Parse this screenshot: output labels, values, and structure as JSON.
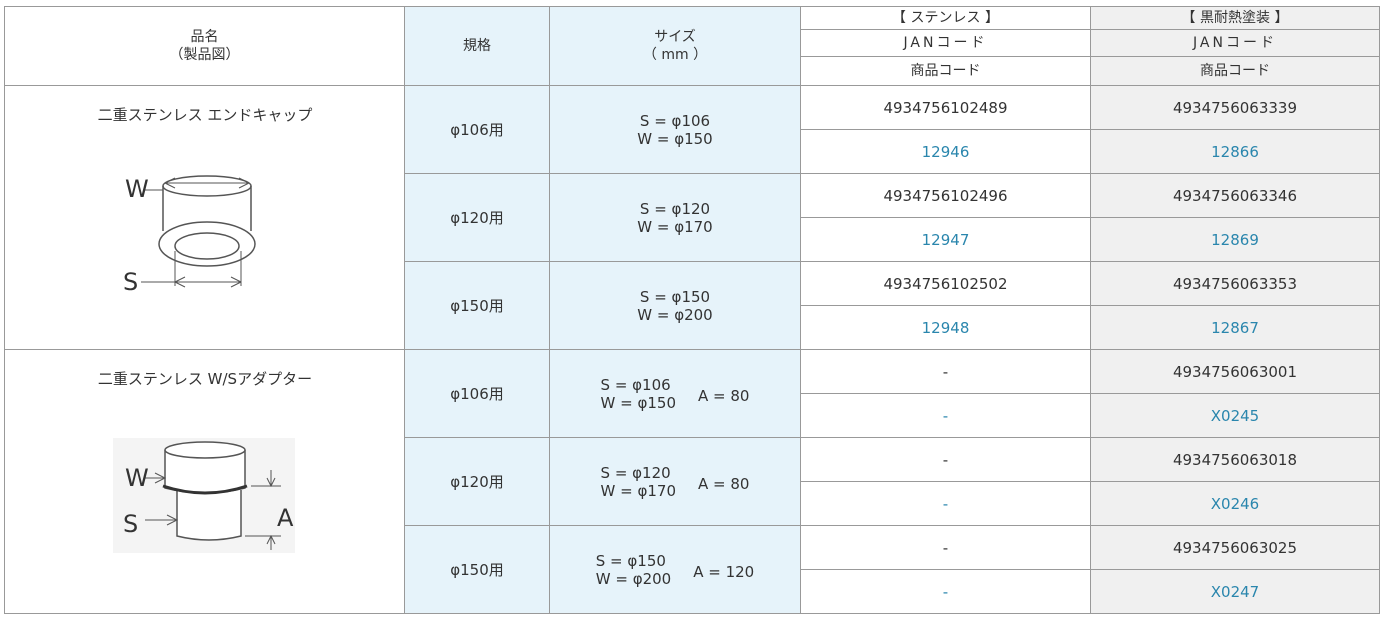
{
  "header": {
    "name": "品名",
    "name_sub": "（製品図）",
    "spec": "規格",
    "size": "サイズ",
    "size_sub": "（ mm ）",
    "columns": [
      {
        "title": "【 ステンレス 】",
        "jan": "JANコード",
        "code": "商品コード"
      },
      {
        "title": "【 黒耐熱塗装 】",
        "jan": "JANコード",
        "code": "商品コード"
      }
    ]
  },
  "products": [
    {
      "name": "二重ステンレス エンドキャップ",
      "diagram": {
        "w": "W",
        "s": "S"
      },
      "rows": [
        {
          "spec": "φ106用",
          "size_s": "S = φ106",
          "size_w": "W = φ150",
          "stainless": {
            "jan": "4934756102489",
            "code": "12946"
          },
          "black": {
            "jan": "4934756063339",
            "code": "12866"
          }
        },
        {
          "spec": "φ120用",
          "size_s": "S = φ120",
          "size_w": "W = φ170",
          "stainless": {
            "jan": "4934756102496",
            "code": "12947"
          },
          "black": {
            "jan": "4934756063346",
            "code": "12869"
          }
        },
        {
          "spec": "φ150用",
          "size_s": "S = φ150",
          "size_w": "W = φ200",
          "stainless": {
            "jan": "4934756102502",
            "code": "12948"
          },
          "black": {
            "jan": "4934756063353",
            "code": "12867"
          }
        }
      ]
    },
    {
      "name": "二重ステンレス W/Sアダプター",
      "diagram": {
        "w": "W",
        "s": "S",
        "a": "A"
      },
      "rows": [
        {
          "spec": "φ106用",
          "size_s": "S = φ106",
          "size_w": "W = φ150",
          "size_a": "A = 80",
          "stainless": {
            "jan": "-",
            "code": "-"
          },
          "black": {
            "jan": "4934756063001",
            "code": "X0245"
          }
        },
        {
          "spec": "φ120用",
          "size_s": "S = φ120",
          "size_w": "W = φ170",
          "size_a": "A = 80",
          "stainless": {
            "jan": "-",
            "code": "-"
          },
          "black": {
            "jan": "4934756063018",
            "code": "X0246"
          }
        },
        {
          "spec": "φ150用",
          "size_s": "S = φ150",
          "size_w": "W = φ200",
          "size_a": "A = 120",
          "stainless": {
            "jan": "-",
            "code": "-"
          },
          "black": {
            "jan": "4934756063025",
            "code": "X0247"
          }
        }
      ]
    }
  ]
}
